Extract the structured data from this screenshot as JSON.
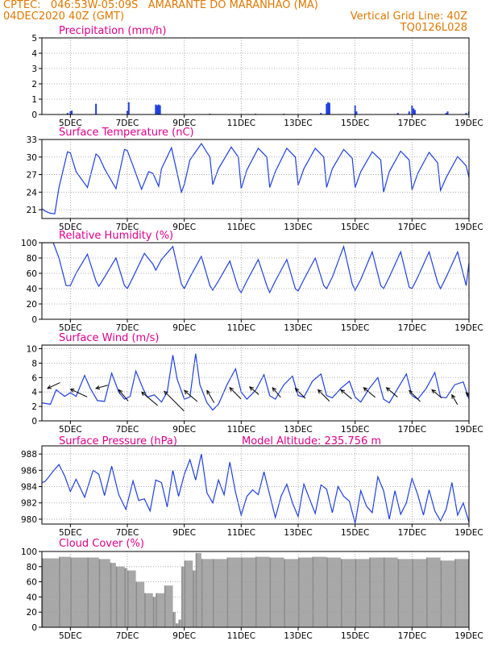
{
  "header": {
    "line1_left": "CPTEC:   046:53W-05:09S   AMARANTE DO MARANHAO (MA)",
    "line2_left": "04DEC2020 40Z (GMT)",
    "line2_right": "Vertical Grid Line: 40Z",
    "line3_right": "TQ0126L028"
  },
  "colors": {
    "header": "#e07800",
    "panel_title": "#e0008a",
    "series": "#1f3fe0",
    "wind_arrow": "#000000",
    "cloud": "#a8a8a8",
    "grid": "#9a9a9a"
  },
  "x_ticks": [
    "5DEC",
    "7DEC",
    "9DEC",
    "11DEC",
    "13DEC",
    "15DEC",
    "17DEC",
    "19DEC"
  ],
  "chart_data": [
    {
      "id": "precip",
      "type": "bar",
      "title": "Precipitation (mm/h)",
      "ylim": [
        0,
        5
      ],
      "yticks": [
        "0",
        "1",
        "2",
        "3",
        "4",
        "5"
      ],
      "x_unit": "day-of-december",
      "x": [
        4.9,
        5.0,
        5.05,
        5.9,
        7.0,
        7.05,
        8.0,
        8.05,
        8.1,
        8.15,
        9.9,
        11.5,
        12.5,
        13.8,
        14.0,
        14.05,
        14.1,
        15.0,
        15.05,
        16.5,
        16.9,
        17.0,
        17.05,
        17.1,
        18.2,
        18.25,
        18.9,
        19.0
      ],
      "values": [
        0.1,
        0.2,
        0.25,
        0.7,
        0.25,
        0.8,
        0.65,
        0.6,
        0.65,
        0.6,
        0.05,
        0.05,
        0.05,
        0.1,
        0.7,
        0.8,
        0.75,
        0.6,
        0.2,
        0.1,
        0.2,
        0.6,
        0.4,
        0.3,
        0.1,
        0.2,
        0.1,
        0.2
      ],
      "grid": true
    },
    {
      "id": "temp",
      "type": "line",
      "title": "Surface Temperature (nC)",
      "ylim": [
        19.5,
        33
      ],
      "yticks": [
        "21",
        "24",
        "27",
        "30",
        "33"
      ],
      "ytick_values": [
        21,
        24,
        27,
        30,
        33
      ],
      "x_unit": "day-of-december",
      "x": [
        4.0,
        4.1,
        4.3,
        4.45,
        4.6,
        4.9,
        5.0,
        5.2,
        5.6,
        5.9,
        6.0,
        6.2,
        6.6,
        6.9,
        7.0,
        7.2,
        7.5,
        7.75,
        7.9,
        8.1,
        8.2,
        8.55,
        8.9,
        9.0,
        9.2,
        9.6,
        9.9,
        10.0,
        10.2,
        10.65,
        10.9,
        11.0,
        11.2,
        11.6,
        11.9,
        12.0,
        12.2,
        12.6,
        12.9,
        13.0,
        13.2,
        13.6,
        13.9,
        14.0,
        14.2,
        14.6,
        14.9,
        15.0,
        15.2,
        15.6,
        15.9,
        16.0,
        16.2,
        16.6,
        16.9,
        17.0,
        17.2,
        17.6,
        17.9,
        18.0,
        18.2,
        18.6,
        18.9,
        19.0
      ],
      "values": [
        21.2,
        20.8,
        20.4,
        20.3,
        24.8,
        30.9,
        30.7,
        27.5,
        24.8,
        30.5,
        30.1,
        28.0,
        24.6,
        31.3,
        31.1,
        28.5,
        24.5,
        27.5,
        27.2,
        25.0,
        28.0,
        31.6,
        24.0,
        25.3,
        29.5,
        32.3,
        30.0,
        25.3,
        28.0,
        31.7,
        30.0,
        24.6,
        27.8,
        31.5,
        30.0,
        24.8,
        27.5,
        31.5,
        30.0,
        25.2,
        28.0,
        31.5,
        30.0,
        24.8,
        28.0,
        31.3,
        29.8,
        24.8,
        27.5,
        30.9,
        29.5,
        24.0,
        27.5,
        31.0,
        29.5,
        24.4,
        27.2,
        30.8,
        29.0,
        24.3,
        26.5,
        30.1,
        28.5,
        26.5
      ],
      "grid": true
    },
    {
      "id": "rh",
      "type": "line",
      "title": "Relative Humidity (%)",
      "ylim": [
        0,
        100
      ],
      "yticks": [
        "0",
        "20",
        "40",
        "60",
        "80",
        "100"
      ],
      "ytick_values": [
        0,
        20,
        40,
        60,
        80,
        100
      ],
      "x_unit": "day-of-december",
      "x": [
        4.0,
        4.4,
        4.6,
        4.85,
        5.0,
        5.2,
        5.6,
        5.9,
        6.0,
        6.2,
        6.6,
        6.9,
        7.0,
        7.2,
        7.6,
        7.9,
        8.0,
        8.2,
        8.6,
        8.9,
        9.0,
        9.2,
        9.6,
        9.9,
        10.0,
        10.2,
        10.6,
        10.9,
        11.0,
        11.2,
        11.6,
        11.9,
        12.0,
        12.2,
        12.6,
        12.9,
        13.0,
        13.2,
        13.6,
        13.9,
        14.0,
        14.2,
        14.6,
        14.9,
        15.0,
        15.2,
        15.6,
        15.9,
        16.0,
        16.2,
        16.6,
        16.9,
        17.0,
        17.2,
        17.6,
        17.9,
        18.0,
        18.2,
        18.6,
        18.9,
        19.0
      ],
      "values": [
        100,
        100,
        80,
        44,
        44,
        60,
        85,
        50,
        43,
        55,
        80,
        44,
        40,
        55,
        86,
        72,
        64,
        78,
        95,
        46,
        40,
        55,
        82,
        44,
        38,
        50,
        76,
        40,
        35,
        50,
        78,
        44,
        35,
        50,
        78,
        40,
        37,
        52,
        80,
        44,
        40,
        55,
        95,
        46,
        38,
        52,
        88,
        44,
        40,
        55,
        88,
        42,
        40,
        55,
        88,
        48,
        40,
        55,
        88,
        44,
        74
      ],
      "grid": true
    },
    {
      "id": "wind",
      "type": "line",
      "title": "Surface Wind (m/s)",
      "ylim": [
        0,
        10.5
      ],
      "yticks": [
        "0",
        "2",
        "4",
        "6",
        "8",
        "10"
      ],
      "ytick_values": [
        0,
        2,
        4,
        6,
        8,
        10
      ],
      "x_unit": "day-of-december",
      "x": [
        4.0,
        4.3,
        4.5,
        4.8,
        5.0,
        5.2,
        5.5,
        5.7,
        5.95,
        6.2,
        6.45,
        6.7,
        6.9,
        7.1,
        7.3,
        7.55,
        7.7,
        7.95,
        8.2,
        8.4,
        8.6,
        8.75,
        9.0,
        9.2,
        9.4,
        9.55,
        9.8,
        10.0,
        10.2,
        10.5,
        10.8,
        11.0,
        11.2,
        11.5,
        11.8,
        12.0,
        12.2,
        12.5,
        12.8,
        13.0,
        13.2,
        13.5,
        13.8,
        14.0,
        14.2,
        14.5,
        14.8,
        15.0,
        15.2,
        15.5,
        15.8,
        16.0,
        16.2,
        16.5,
        16.8,
        17.0,
        17.2,
        17.5,
        17.8,
        18.0,
        18.2,
        18.5,
        18.8,
        19.0
      ],
      "values": [
        2.5,
        2.3,
        4.3,
        3.4,
        3.9,
        3.4,
        6.3,
        4.5,
        2.8,
        2.7,
        6.6,
        4.0,
        3.0,
        3.4,
        6.9,
        4.5,
        3.3,
        3.6,
        2.6,
        4.0,
        9.1,
        5.8,
        3.0,
        3.3,
        9.3,
        5.0,
        2.5,
        1.5,
        2.3,
        5.0,
        7.2,
        4.0,
        3.0,
        4.2,
        6.4,
        3.5,
        3.0,
        5.0,
        6.2,
        3.5,
        3.3,
        5.5,
        6.5,
        3.5,
        3.2,
        4.5,
        5.5,
        3.3,
        2.6,
        4.5,
        6.0,
        3.0,
        2.5,
        4.5,
        6.5,
        3.5,
        3.0,
        4.5,
        6.7,
        3.3,
        3.2,
        5.0,
        5.4,
        3.0
      ],
      "arrows": {
        "x": [
          4.2,
          5.0,
          5.9,
          6.7,
          7.5,
          8.3,
          9.0,
          9.8,
          10.6,
          11.3,
          12.1,
          12.9,
          13.7,
          14.5,
          15.3,
          16.1,
          16.9,
          17.7,
          18.4,
          18.9
        ],
        "y": [
          4.5,
          4.4,
          4.5,
          4.3,
          4.0,
          4.1,
          4.2,
          4.2,
          4.6,
          4.7,
          4.6,
          4.5,
          4.3,
          4.3,
          4.6,
          4.6,
          4.2,
          4.3,
          3.6,
          3.9
        ],
        "speed_mps": [
          1.5,
          2.5,
          1.2,
          1.7,
          3.0,
          4.5,
          2.2,
          1.6,
          2.0,
          1.1,
          1.3,
          1.6,
          2.0,
          1.6,
          1.8,
          1.7,
          1.9,
          1.3,
          1.0,
          1.2
        ],
        "direction_deg": [
          25,
          -25,
          15,
          -50,
          -40,
          -45,
          -40,
          -60,
          -45,
          -40,
          -50,
          -45,
          -45,
          -40,
          -40,
          -40,
          -45,
          -40,
          -60,
          -45
        ]
      },
      "grid": true
    },
    {
      "id": "pres",
      "type": "line",
      "title": "Surface Pressure (hPa)",
      "annotation": "Model Altitude: 235.756 m",
      "ylim": [
        979.4,
        989
      ],
      "yticks": [
        "980",
        "982",
        "984",
        "986",
        "988"
      ],
      "ytick_values": [
        980,
        982,
        984,
        986,
        988
      ],
      "x_unit": "day-of-december",
      "x": [
        4.0,
        4.1,
        4.2,
        4.4,
        4.6,
        4.8,
        5.0,
        5.2,
        5.5,
        5.8,
        6.0,
        6.2,
        6.45,
        6.7,
        6.95,
        7.2,
        7.4,
        7.6,
        7.8,
        8.0,
        8.2,
        8.4,
        8.6,
        8.8,
        9.0,
        9.2,
        9.4,
        9.6,
        9.8,
        10.0,
        10.2,
        10.4,
        10.6,
        10.8,
        11.0,
        11.2,
        11.4,
        11.6,
        11.8,
        12.0,
        12.2,
        12.4,
        12.6,
        12.8,
        13.0,
        13.2,
        13.4,
        13.6,
        13.8,
        14.0,
        14.2,
        14.4,
        14.6,
        14.8,
        15.0,
        15.2,
        15.4,
        15.6,
        15.8,
        16.0,
        16.2,
        16.4,
        16.6,
        16.8,
        17.0,
        17.2,
        17.4,
        17.6,
        17.8,
        18.0,
        18.2,
        18.4,
        18.6,
        18.8,
        19.0
      ],
      "values": [
        984.5,
        984.6,
        985.0,
        985.9,
        986.7,
        985.3,
        983.4,
        984.9,
        982.7,
        986.0,
        985.5,
        982.9,
        986.5,
        983.0,
        981.2,
        984.7,
        982.3,
        982.5,
        981.0,
        984.8,
        984.5,
        981.5,
        986.0,
        982.8,
        985.5,
        987.3,
        984.8,
        988.0,
        983.2,
        982.0,
        984.8,
        983.0,
        987.0,
        983.3,
        980.5,
        982.8,
        983.6,
        983.0,
        985.8,
        983.0,
        980.2,
        982.8,
        984.3,
        982.0,
        980.3,
        984.3,
        982.5,
        980.7,
        984.2,
        983.7,
        980.8,
        984.0,
        982.8,
        982.2,
        979.5,
        983.5,
        981.6,
        980.8,
        985.2,
        983.5,
        980.0,
        983.5,
        980.6,
        982.0,
        985.0,
        983.0,
        980.5,
        983.6,
        981.0,
        979.8,
        981.2,
        984.5,
        980.5,
        982.0,
        979.6
      ],
      "grid": true
    },
    {
      "id": "cloud",
      "type": "bar",
      "title": "Cloud Cover (%)",
      "ylim": [
        0,
        100
      ],
      "yticks": [
        "0",
        "20",
        "40",
        "60",
        "80",
        "100"
      ],
      "ytick_values": [
        0,
        20,
        40,
        60,
        80,
        100
      ],
      "x_unit": "day-of-december",
      "x": [
        4.0,
        4.6,
        5.0,
        5.6,
        6.0,
        6.4,
        6.6,
        6.9,
        7.0,
        7.3,
        7.6,
        7.9,
        8.0,
        8.3,
        8.6,
        8.7,
        8.8,
        8.9,
        9.0,
        9.3,
        9.4,
        9.6,
        10.0,
        10.5,
        11.0,
        11.5,
        12.0,
        12.5,
        13.0,
        13.5,
        14.0,
        14.5,
        15.0,
        15.5,
        16.0,
        16.5,
        17.0,
        17.5,
        18.0,
        18.5,
        19.0
      ],
      "values": [
        91,
        93,
        92,
        92,
        90,
        85,
        80,
        78,
        75,
        60,
        45,
        40,
        45,
        55,
        20,
        5,
        10,
        80,
        88,
        75,
        98,
        90,
        90,
        92,
        92,
        93,
        92,
        90,
        92,
        93,
        92,
        90,
        90,
        92,
        92,
        90,
        90,
        92,
        88,
        90,
        92
      ],
      "grid": true
    }
  ]
}
